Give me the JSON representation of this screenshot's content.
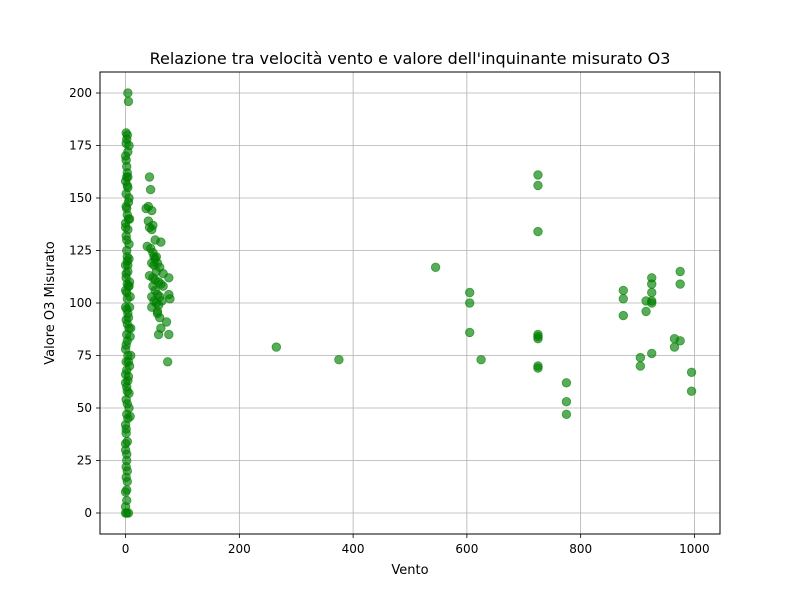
{
  "chart_data": {
    "type": "scatter",
    "title": "Relazione tra velocità vento e valore dell'inquinante misurato O3",
    "xlabel": "Vento",
    "ylabel": "Valore O3 Misurato",
    "xlim": [
      -45,
      1045
    ],
    "ylim": [
      -10,
      210
    ],
    "xticks": [
      0,
      200,
      400,
      600,
      800,
      1000
    ],
    "yticks": [
      0,
      25,
      50,
      75,
      100,
      125,
      150,
      175,
      200
    ],
    "grid": true,
    "marker_color": "#008000",
    "marker_alpha": 0.65,
    "series": [
      {
        "points": [
          [
            0,
            0
          ],
          [
            2,
            0
          ],
          [
            5,
            0
          ],
          [
            0,
            3
          ],
          [
            2,
            11
          ],
          [
            3,
            15
          ],
          [
            1,
            22
          ],
          [
            2,
            25
          ],
          [
            0,
            30
          ],
          [
            3,
            34
          ],
          [
            1,
            38
          ],
          [
            0,
            42
          ],
          [
            4,
            45
          ],
          [
            2,
            47
          ],
          [
            6,
            50
          ],
          [
            1,
            54
          ],
          [
            3,
            58
          ],
          [
            0,
            62
          ],
          [
            5,
            65
          ],
          [
            2,
            68
          ],
          [
            1,
            72
          ],
          [
            4,
            75
          ],
          [
            0,
            78
          ],
          [
            3,
            82
          ],
          [
            2,
            85
          ],
          [
            6,
            88
          ],
          [
            1,
            92
          ],
          [
            4,
            95
          ],
          [
            0,
            98
          ],
          [
            3,
            102
          ],
          [
            2,
            105
          ],
          [
            5,
            108
          ],
          [
            1,
            112
          ],
          [
            4,
            115
          ],
          [
            0,
            118
          ],
          [
            3,
            122
          ],
          [
            2,
            125
          ],
          [
            6,
            128
          ],
          [
            1,
            132
          ],
          [
            4,
            135
          ],
          [
            0,
            138
          ],
          [
            3,
            142
          ],
          [
            2,
            145
          ],
          [
            5,
            148
          ],
          [
            1,
            152
          ],
          [
            4,
            155
          ],
          [
            0,
            158
          ],
          [
            3,
            162
          ],
          [
            2,
            165
          ],
          [
            1,
            168
          ],
          [
            4,
            172
          ],
          [
            6,
            175
          ],
          [
            2,
            178
          ],
          [
            1,
            181
          ],
          [
            3,
            180
          ],
          [
            5,
            196
          ],
          [
            4,
            200
          ],
          [
            7,
            98
          ],
          [
            8,
            103
          ],
          [
            7,
            110
          ],
          [
            6,
            121
          ],
          [
            8,
            84
          ],
          [
            7,
            70
          ],
          [
            6,
            57
          ],
          [
            8,
            46
          ],
          [
            7,
            140
          ],
          [
            6,
            150
          ],
          [
            9,
            75
          ],
          [
            9,
            88
          ],
          [
            2,
            6
          ],
          [
            0,
            10
          ],
          [
            1,
            17
          ],
          [
            3,
            20
          ],
          [
            2,
            28
          ],
          [
            0,
            33
          ],
          [
            1,
            40
          ],
          [
            3,
            52
          ],
          [
            2,
            60
          ],
          [
            0,
            66
          ],
          [
            1,
            80
          ],
          [
            3,
            90
          ],
          [
            2,
            97
          ],
          [
            0,
            106
          ],
          [
            1,
            114
          ],
          [
            3,
            120
          ],
          [
            2,
            130
          ],
          [
            0,
            136
          ],
          [
            1,
            146
          ],
          [
            3,
            156
          ],
          [
            2,
            160
          ],
          [
            0,
            170
          ],
          [
            1,
            176
          ],
          [
            3,
            109
          ],
          [
            5,
            93
          ],
          [
            4,
            63
          ],
          [
            5,
            140
          ],
          [
            4,
            118
          ],
          [
            6,
            108
          ],
          [
            5,
            72
          ],
          [
            4,
            160
          ],
          [
            36,
            145
          ],
          [
            40,
            146
          ],
          [
            42,
            160
          ],
          [
            44,
            154
          ],
          [
            46,
            144
          ],
          [
            40,
            139
          ],
          [
            42,
            136
          ],
          [
            46,
            135
          ],
          [
            48,
            137
          ],
          [
            38,
            127
          ],
          [
            44,
            126
          ],
          [
            48,
            124
          ],
          [
            50,
            122
          ],
          [
            52,
            121
          ],
          [
            54,
            122
          ],
          [
            46,
            119
          ],
          [
            50,
            118
          ],
          [
            56,
            119
          ],
          [
            62,
            129
          ],
          [
            42,
            113
          ],
          [
            48,
            112
          ],
          [
            52,
            111
          ],
          [
            58,
            110
          ],
          [
            62,
            109
          ],
          [
            66,
            108
          ],
          [
            76,
            112
          ],
          [
            48,
            108
          ],
          [
            52,
            106
          ],
          [
            56,
            104
          ],
          [
            60,
            103
          ],
          [
            46,
            103
          ],
          [
            50,
            101
          ],
          [
            54,
            100
          ],
          [
            58,
            99
          ],
          [
            64,
            101
          ],
          [
            76,
            104
          ],
          [
            78,
            102
          ],
          [
            46,
            98
          ],
          [
            56,
            96
          ],
          [
            60,
            93
          ],
          [
            62,
            88
          ],
          [
            72,
            91
          ],
          [
            58,
            85
          ],
          [
            76,
            85
          ],
          [
            74,
            72
          ],
          [
            54,
            115
          ],
          [
            60,
            117
          ],
          [
            66,
            114
          ],
          [
            52,
            130
          ],
          [
            56,
            95
          ],
          [
            265,
            79
          ],
          [
            375,
            73
          ],
          [
            545,
            117
          ],
          [
            605,
            105
          ],
          [
            605,
            100
          ],
          [
            605,
            86
          ],
          [
            625,
            73
          ],
          [
            725,
            161
          ],
          [
            725,
            156
          ],
          [
            725,
            134
          ],
          [
            725,
            85
          ],
          [
            725,
            84
          ],
          [
            725,
            83
          ],
          [
            725,
            70
          ],
          [
            725,
            69
          ],
          [
            775,
            62
          ],
          [
            775,
            53
          ],
          [
            775,
            47
          ],
          [
            875,
            106
          ],
          [
            875,
            102
          ],
          [
            875,
            94
          ],
          [
            905,
            74
          ],
          [
            905,
            70
          ],
          [
            915,
            101
          ],
          [
            915,
            96
          ],
          [
            925,
            112
          ],
          [
            925,
            109
          ],
          [
            925,
            105
          ],
          [
            925,
            101
          ],
          [
            925,
            100
          ],
          [
            925,
            76
          ],
          [
            965,
            83
          ],
          [
            965,
            79
          ],
          [
            975,
            115
          ],
          [
            975,
            109
          ],
          [
            975,
            82
          ],
          [
            995,
            67
          ],
          [
            995,
            58
          ]
        ]
      }
    ]
  }
}
